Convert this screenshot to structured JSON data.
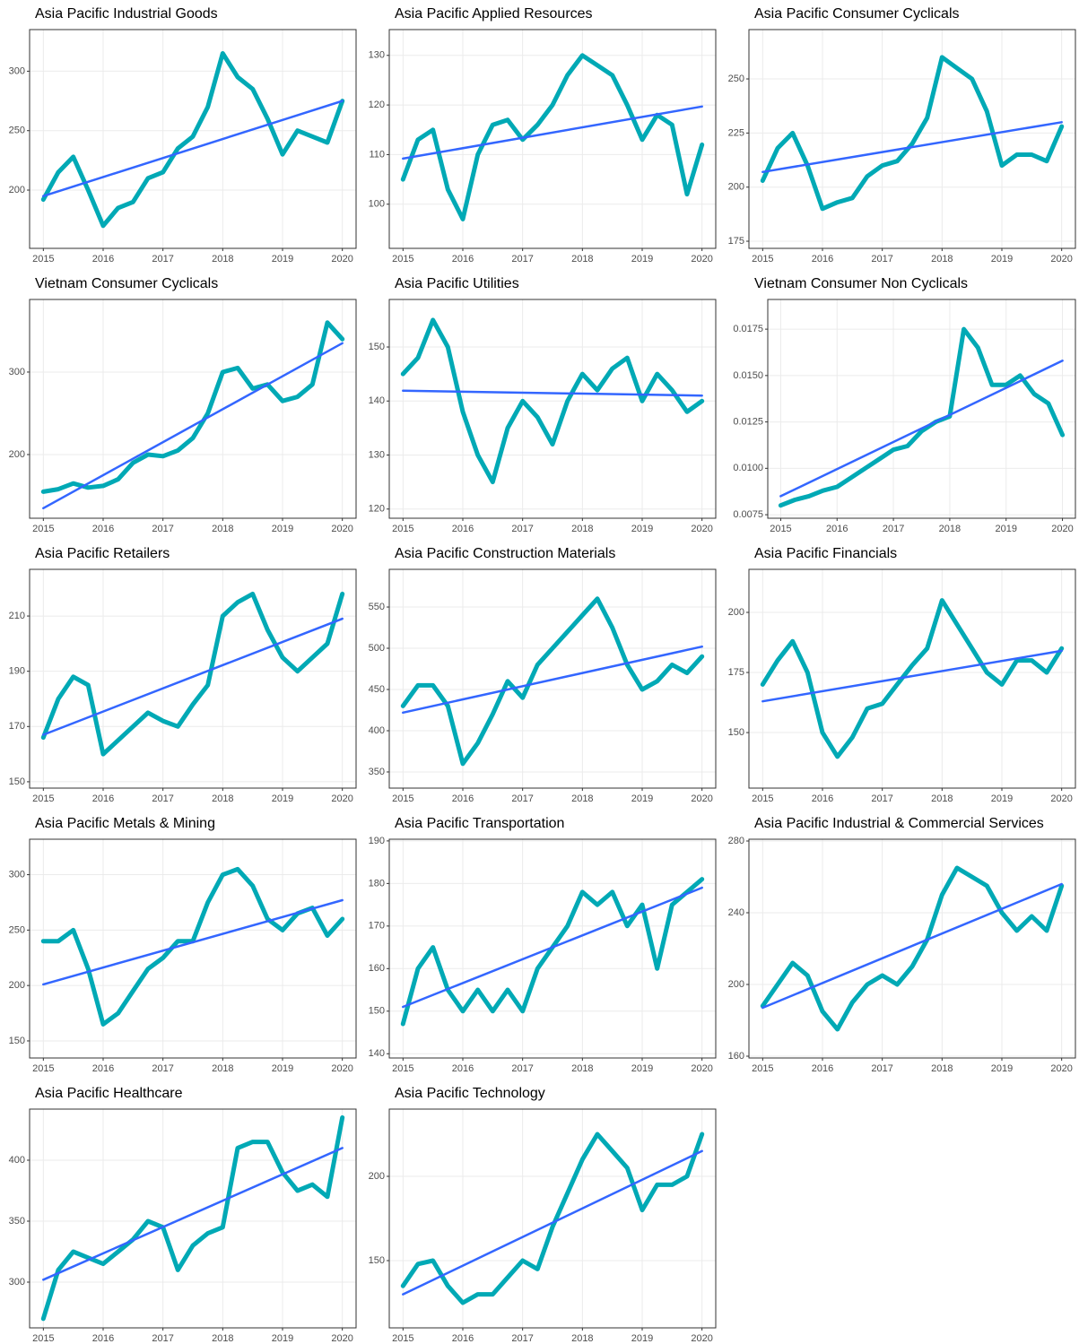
{
  "chart_data": [
    {
      "type": "line",
      "title": "Asia Pacific Industrial Goods",
      "x": [
        2015,
        2015.25,
        2015.5,
        2015.75,
        2016,
        2016.25,
        2016.5,
        2016.75,
        2017,
        2017.25,
        2017.5,
        2017.75,
        2018,
        2018.25,
        2018.5,
        2018.75,
        2019,
        2019.25,
        2019.5,
        2019.75,
        2020
      ],
      "series": [
        {
          "color": "#00a9b5",
          "values": [
            192,
            215,
            228,
            200,
            170,
            185,
            190,
            210,
            215,
            235,
            245,
            270,
            315,
            295,
            285,
            260,
            230,
            250,
            245,
            240,
            275
          ]
        },
        {
          "color": "#3366ff",
          "x": [
            2015,
            2020
          ],
          "values": [
            195,
            275
          ]
        }
      ],
      "xlim": [
        2014.77,
        2020.23
      ],
      "xticks": [
        2015,
        2016,
        2017,
        2018,
        2019,
        2020
      ],
      "ylim": [
        151,
        335
      ],
      "yticks": [
        200,
        250,
        300
      ],
      "grid": true
    },
    {
      "type": "line",
      "title": "Asia Pacific Applied Resources",
      "x": [
        2015,
        2015.25,
        2015.5,
        2015.75,
        2016,
        2016.25,
        2016.5,
        2016.75,
        2017,
        2017.25,
        2017.5,
        2017.75,
        2018,
        2018.25,
        2018.5,
        2018.75,
        2019,
        2019.25,
        2019.5,
        2019.75,
        2020
      ],
      "series": [
        {
          "color": "#00a9b5",
          "values": [
            105,
            113,
            115,
            103,
            97,
            110,
            116,
            117,
            113,
            116,
            120,
            126,
            130,
            128,
            126,
            120,
            113,
            118,
            116,
            102,
            112
          ]
        },
        {
          "color": "#3366ff",
          "x": [
            2015,
            2020
          ],
          "values": [
            109.2,
            119.7
          ]
        }
      ],
      "xlim": [
        2014.77,
        2020.23
      ],
      "xticks": [
        2015,
        2016,
        2017,
        2018,
        2019,
        2020
      ],
      "ylim": [
        91.1,
        135.2
      ],
      "yticks": [
        100,
        110,
        120,
        130
      ],
      "grid": true
    },
    {
      "type": "line",
      "title": "Asia Pacific Consumer Cyclicals",
      "x": [
        2015,
        2015.25,
        2015.5,
        2015.75,
        2016,
        2016.25,
        2016.5,
        2016.75,
        2017,
        2017.25,
        2017.5,
        2017.75,
        2018,
        2018.25,
        2018.5,
        2018.75,
        2019,
        2019.25,
        2019.5,
        2019.75,
        2020
      ],
      "series": [
        {
          "color": "#00a9b5",
          "values": [
            203,
            218,
            225,
            210,
            190,
            193,
            195,
            205,
            210,
            212,
            220,
            232,
            260,
            255,
            250,
            235,
            210,
            215,
            215,
            212,
            228
          ]
        },
        {
          "color": "#3366ff",
          "x": [
            2015,
            2020
          ],
          "values": [
            207,
            230
          ]
        }
      ],
      "xlim": [
        2014.77,
        2020.23
      ],
      "xticks": [
        2015,
        2016,
        2017,
        2018,
        2019,
        2020
      ],
      "ylim": [
        171.7,
        272.8
      ],
      "yticks": [
        175,
        200,
        225,
        250
      ],
      "grid": true
    },
    {
      "type": "line",
      "title": "Vietnam Consumer Cyclicals",
      "x": [
        2015,
        2015.25,
        2015.5,
        2015.75,
        2016,
        2016.25,
        2016.5,
        2016.75,
        2017,
        2017.25,
        2017.5,
        2017.75,
        2018,
        2018.25,
        2018.5,
        2018.75,
        2019,
        2019.25,
        2019.5,
        2019.75,
        2020
      ],
      "series": [
        {
          "color": "#00a9b5",
          "values": [
            155,
            158,
            165,
            160,
            162,
            170,
            190,
            200,
            198,
            205,
            220,
            250,
            300,
            305,
            280,
            285,
            265,
            270,
            285,
            360,
            340
          ]
        },
        {
          "color": "#3366ff",
          "x": [
            2015,
            2020
          ],
          "values": [
            135,
            335
          ]
        }
      ],
      "xlim": [
        2014.77,
        2020.23
      ],
      "xticks": [
        2015,
        2016,
        2017,
        2018,
        2019,
        2020
      ],
      "ylim": [
        122.8,
        388
      ],
      "yticks": [
        200,
        300
      ],
      "grid": true
    },
    {
      "type": "line",
      "title": "Asia Pacific Utilities",
      "x": [
        2015,
        2015.25,
        2015.5,
        2015.75,
        2016,
        2016.25,
        2016.5,
        2016.75,
        2017,
        2017.25,
        2017.5,
        2017.75,
        2018,
        2018.25,
        2018.5,
        2018.75,
        2019,
        2019.25,
        2019.5,
        2019.75,
        2020
      ],
      "series": [
        {
          "color": "#00a9b5",
          "values": [
            145,
            148,
            155,
            150,
            138,
            130,
            125,
            135,
            140,
            137,
            132,
            140,
            145,
            142,
            146,
            148,
            140,
            145,
            142,
            138,
            140
          ]
        },
        {
          "color": "#3366ff",
          "x": [
            2015,
            2020
          ],
          "values": [
            141.9,
            141
          ]
        }
      ],
      "xlim": [
        2014.77,
        2020.23
      ],
      "xticks": [
        2015,
        2016,
        2017,
        2018,
        2019,
        2020
      ],
      "ylim": [
        118.3,
        158.8
      ],
      "yticks": [
        120,
        130,
        140,
        150
      ],
      "grid": true
    },
    {
      "type": "line",
      "title": "Vietnam Consumer Non Cyclicals",
      "x": [
        2015,
        2015.25,
        2015.5,
        2015.75,
        2016,
        2016.25,
        2016.5,
        2016.75,
        2017,
        2017.25,
        2017.5,
        2017.75,
        2018,
        2018.25,
        2018.5,
        2018.75,
        2019,
        2019.25,
        2019.5,
        2019.75,
        2020
      ],
      "series": [
        {
          "color": "#00a9b5",
          "values": [
            0.008,
            0.0083,
            0.0085,
            0.0088,
            0.009,
            0.0095,
            0.01,
            0.0105,
            0.011,
            0.0112,
            0.012,
            0.0125,
            0.0128,
            0.0175,
            0.0165,
            0.0145,
            0.0145,
            0.015,
            0.014,
            0.0135,
            0.0118
          ]
        },
        {
          "color": "#3366ff",
          "x": [
            2015,
            2020
          ],
          "values": [
            0.0085,
            0.0158
          ]
        }
      ],
      "xlim": [
        2014.77,
        2020.23
      ],
      "xticks": [
        2015,
        2016,
        2017,
        2018,
        2019,
        2020
      ],
      "ylim": [
        0.00731,
        0.0191
      ],
      "yticks": [
        0.0075,
        {
          "value": 0.01,
          "label": "0.0100"
        },
        0.0125,
        {
          "value": 0.015,
          "label": "0.0150"
        },
        0.0175
      ],
      "grid": true
    },
    {
      "type": "line",
      "title": "Asia Pacific Retailers",
      "x": [
        2015,
        2015.25,
        2015.5,
        2015.75,
        2016,
        2016.25,
        2016.5,
        2016.75,
        2017,
        2017.25,
        2017.5,
        2017.75,
        2018,
        2018.25,
        2018.5,
        2018.75,
        2019,
        2019.25,
        2019.5,
        2019.75,
        2020
      ],
      "series": [
        {
          "color": "#00a9b5",
          "values": [
            166,
            180,
            188,
            185,
            160,
            165,
            170,
            175,
            172,
            170,
            178,
            185,
            210,
            215,
            218,
            205,
            195,
            190,
            195,
            200,
            218
          ]
        },
        {
          "color": "#3366ff",
          "x": [
            2015,
            2020
          ],
          "values": [
            167,
            209
          ]
        }
      ],
      "xlim": [
        2014.77,
        2020.23
      ],
      "xticks": [
        2015,
        2016,
        2017,
        2018,
        2019,
        2020
      ],
      "ylim": [
        147.7,
        226.9
      ],
      "yticks": [
        150,
        170,
        190,
        210
      ],
      "grid": true
    },
    {
      "type": "line",
      "title": "Asia Pacific Construction Materials",
      "x": [
        2015,
        2015.25,
        2015.5,
        2015.75,
        2016,
        2016.25,
        2016.5,
        2016.75,
        2017,
        2017.25,
        2017.5,
        2017.75,
        2018,
        2018.25,
        2018.5,
        2018.75,
        2019,
        2019.25,
        2019.5,
        2019.75,
        2020
      ],
      "series": [
        {
          "color": "#00a9b5",
          "values": [
            430,
            455,
            455,
            430,
            360,
            385,
            420,
            460,
            440,
            480,
            500,
            520,
            540,
            560,
            525,
            480,
            450,
            460,
            480,
            470,
            490
          ]
        },
        {
          "color": "#3366ff",
          "x": [
            2015,
            2020
          ],
          "values": [
            422,
            502
          ]
        }
      ],
      "xlim": [
        2014.77,
        2020.23
      ],
      "xticks": [
        2015,
        2016,
        2017,
        2018,
        2019,
        2020
      ],
      "ylim": [
        330.4,
        595.7
      ],
      "yticks": [
        350,
        400,
        450,
        500,
        550
      ],
      "grid": true
    },
    {
      "type": "line",
      "title": "Asia Pacific Financials",
      "x": [
        2015,
        2015.25,
        2015.5,
        2015.75,
        2016,
        2016.25,
        2016.5,
        2016.75,
        2017,
        2017.25,
        2017.5,
        2017.75,
        2018,
        2018.25,
        2018.5,
        2018.75,
        2019,
        2019.25,
        2019.5,
        2019.75,
        2020
      ],
      "series": [
        {
          "color": "#00a9b5",
          "values": [
            170,
            180,
            188,
            175,
            150,
            140,
            148,
            160,
            162,
            170,
            178,
            185,
            205,
            195,
            185,
            175,
            170,
            180,
            180,
            175,
            185
          ]
        },
        {
          "color": "#3366ff",
          "x": [
            2015,
            2020
          ],
          "values": [
            163,
            184
          ]
        }
      ],
      "xlim": [
        2014.77,
        2020.23
      ],
      "xticks": [
        2015,
        2016,
        2017,
        2018,
        2019,
        2020
      ],
      "ylim": [
        126.9,
        217.9
      ],
      "yticks": [
        150,
        175,
        200
      ],
      "grid": true
    },
    {
      "type": "line",
      "title": "Asia Pacific Metals & Mining",
      "x": [
        2015,
        2015.25,
        2015.5,
        2015.75,
        2016,
        2016.25,
        2016.5,
        2016.75,
        2017,
        2017.25,
        2017.5,
        2017.75,
        2018,
        2018.25,
        2018.5,
        2018.75,
        2019,
        2019.25,
        2019.5,
        2019.75,
        2020
      ],
      "series": [
        {
          "color": "#00a9b5",
          "values": [
            240,
            240,
            250,
            215,
            165,
            175,
            195,
            215,
            225,
            240,
            240,
            275,
            300,
            305,
            290,
            260,
            250,
            265,
            270,
            245,
            260
          ]
        },
        {
          "color": "#3366ff",
          "x": [
            2015,
            2020
          ],
          "values": [
            201,
            277
          ]
        }
      ],
      "xlim": [
        2014.77,
        2020.23
      ],
      "xticks": [
        2015,
        2016,
        2017,
        2018,
        2019,
        2020
      ],
      "ylim": [
        134.6,
        332
      ],
      "yticks": [
        150,
        200,
        250,
        300
      ],
      "grid": true
    },
    {
      "type": "line",
      "title": "Asia Pacific Transportation",
      "x": [
        2015,
        2015.25,
        2015.5,
        2015.75,
        2016,
        2016.25,
        2016.5,
        2016.75,
        2017,
        2017.25,
        2017.5,
        2017.75,
        2018,
        2018.25,
        2018.5,
        2018.75,
        2019,
        2019.25,
        2019.5,
        2019.75,
        2020
      ],
      "series": [
        {
          "color": "#00a9b5",
          "values": [
            147,
            160,
            165,
            155,
            150,
            155,
            150,
            155,
            150,
            160,
            165,
            170,
            178,
            175,
            178,
            170,
            175,
            160,
            175,
            178,
            181
          ]
        },
        {
          "color": "#3366ff",
          "x": [
            2015,
            2020
          ],
          "values": [
            151,
            179
          ]
        }
      ],
      "xlim": [
        2014.77,
        2020.23
      ],
      "xticks": [
        2015,
        2016,
        2017,
        2018,
        2019,
        2020
      ],
      "ylim": [
        139,
        190.4
      ],
      "yticks": [
        140,
        150,
        160,
        170,
        180,
        190
      ],
      "grid": true
    },
    {
      "type": "line",
      "title": "Asia Pacific Industrial & Commercial Services",
      "x": [
        2015,
        2015.25,
        2015.5,
        2015.75,
        2016,
        2016.25,
        2016.5,
        2016.75,
        2017,
        2017.25,
        2017.5,
        2017.75,
        2018,
        2018.25,
        2018.5,
        2018.75,
        2019,
        2019.25,
        2019.5,
        2019.75,
        2020
      ],
      "series": [
        {
          "color": "#00a9b5",
          "values": [
            188,
            200,
            212,
            205,
            185,
            175,
            190,
            200,
            205,
            200,
            210,
            225,
            250,
            265,
            260,
            255,
            240,
            230,
            238,
            230,
            255
          ]
        },
        {
          "color": "#3366ff",
          "x": [
            2015,
            2020
          ],
          "values": [
            187,
            256
          ]
        }
      ],
      "xlim": [
        2014.77,
        2020.23
      ],
      "xticks": [
        2015,
        2016,
        2017,
        2018,
        2019,
        2020
      ],
      "ylim": [
        159,
        281
      ],
      "yticks": [
        160,
        200,
        240,
        280
      ],
      "grid": true
    },
    {
      "type": "line",
      "title": "Asia Pacific Healthcare",
      "x": [
        2015,
        2015.25,
        2015.5,
        2015.75,
        2016,
        2016.25,
        2016.5,
        2016.75,
        2017,
        2017.25,
        2017.5,
        2017.75,
        2018,
        2018.25,
        2018.5,
        2018.75,
        2019,
        2019.25,
        2019.5,
        2019.75,
        2020
      ],
      "series": [
        {
          "color": "#00a9b5",
          "values": [
            270,
            310,
            325,
            320,
            315,
            325,
            335,
            350,
            345,
            310,
            330,
            340,
            345,
            410,
            415,
            415,
            390,
            375,
            380,
            370,
            435
          ]
        },
        {
          "color": "#3366ff",
          "x": [
            2015,
            2020
          ],
          "values": [
            302,
            410
          ]
        }
      ],
      "xlim": [
        2014.77,
        2020.23
      ],
      "xticks": [
        2015,
        2016,
        2017,
        2018,
        2019,
        2020
      ],
      "ylim": [
        262.5,
        441.9
      ],
      "yticks": [
        300,
        350,
        400
      ],
      "grid": true
    },
    {
      "type": "line",
      "title": "Asia Pacific Technology",
      "x": [
        2015,
        2015.25,
        2015.5,
        2015.75,
        2016,
        2016.25,
        2016.5,
        2016.75,
        2017,
        2017.25,
        2017.5,
        2017.75,
        2018,
        2018.25,
        2018.5,
        2018.75,
        2019,
        2019.25,
        2019.5,
        2019.75,
        2020
      ],
      "series": [
        {
          "color": "#00a9b5",
          "values": [
            135,
            148,
            150,
            135,
            125,
            130,
            130,
            140,
            150,
            145,
            170,
            190,
            210,
            225,
            215,
            205,
            180,
            195,
            195,
            200,
            225
          ]
        },
        {
          "color": "#3366ff",
          "x": [
            2015,
            2020
          ],
          "values": [
            130,
            215
          ]
        }
      ],
      "xlim": [
        2014.77,
        2020.23
      ],
      "xticks": [
        2015,
        2016,
        2017,
        2018,
        2019,
        2020
      ],
      "ylim": [
        110.1,
        239.9
      ],
      "yticks": [
        150,
        200
      ],
      "grid": true
    }
  ]
}
